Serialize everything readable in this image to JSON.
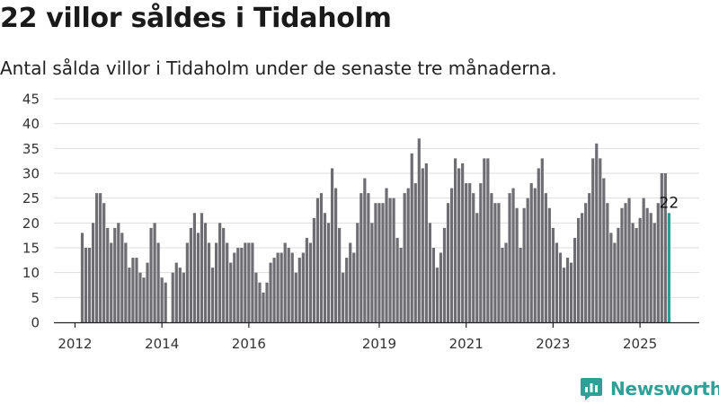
{
  "header": {
    "title": "22 villor såldes i Tidaholm",
    "subtitle": "Antal sålda villor i Tidaholm under de senaste tre månaderna."
  },
  "brand": {
    "name": "Newsworthy"
  },
  "colors": {
    "bar": "#6e6d72",
    "highlight": "#2a9d96",
    "grid": "#dddddd",
    "axis": "#222222",
    "brand": "#2f9f98"
  },
  "chart_data": {
    "type": "bar",
    "x_start": "2012-03",
    "ylim": [
      0,
      45
    ],
    "yticks": [
      0,
      5,
      10,
      15,
      20,
      25,
      30,
      35,
      40,
      45
    ],
    "xticks": [
      "2012",
      "2014",
      "2016",
      "2019",
      "2021",
      "2023",
      "2025"
    ],
    "grid": true,
    "highlight_label": "22",
    "values": [
      18,
      15,
      15,
      20,
      26,
      26,
      24,
      19,
      16,
      19,
      20,
      18,
      16,
      11,
      13,
      13,
      10,
      9,
      12,
      19,
      20,
      16,
      9,
      8,
      0,
      10,
      12,
      11,
      10,
      16,
      19,
      22,
      18,
      22,
      20,
      16,
      11,
      16,
      20,
      19,
      16,
      12,
      14,
      15,
      15,
      16,
      16,
      16,
      10,
      8,
      6,
      8,
      12,
      13,
      14,
      14,
      16,
      15,
      14,
      10,
      13,
      14,
      17,
      16,
      21,
      25,
      26,
      22,
      20,
      31,
      27,
      19,
      10,
      13,
      16,
      14,
      20,
      26,
      29,
      26,
      20,
      24,
      24,
      24,
      27,
      25,
      25,
      17,
      15,
      26,
      27,
      34,
      28,
      37,
      31,
      32,
      20,
      15,
      11,
      14,
      19,
      24,
      27,
      33,
      31,
      32,
      28,
      28,
      26,
      22,
      28,
      33,
      33,
      26,
      24,
      24,
      15,
      16,
      26,
      27,
      23,
      15,
      23,
      25,
      28,
      27,
      31,
      33,
      26,
      23,
      19,
      16,
      14,
      11,
      13,
      12,
      17,
      21,
      22,
      24,
      26,
      33,
      36,
      33,
      29,
      24,
      18,
      16,
      19,
      23,
      24,
      25,
      20,
      19,
      21,
      25,
      23,
      22,
      20,
      24,
      30,
      30,
      22
    ]
  }
}
